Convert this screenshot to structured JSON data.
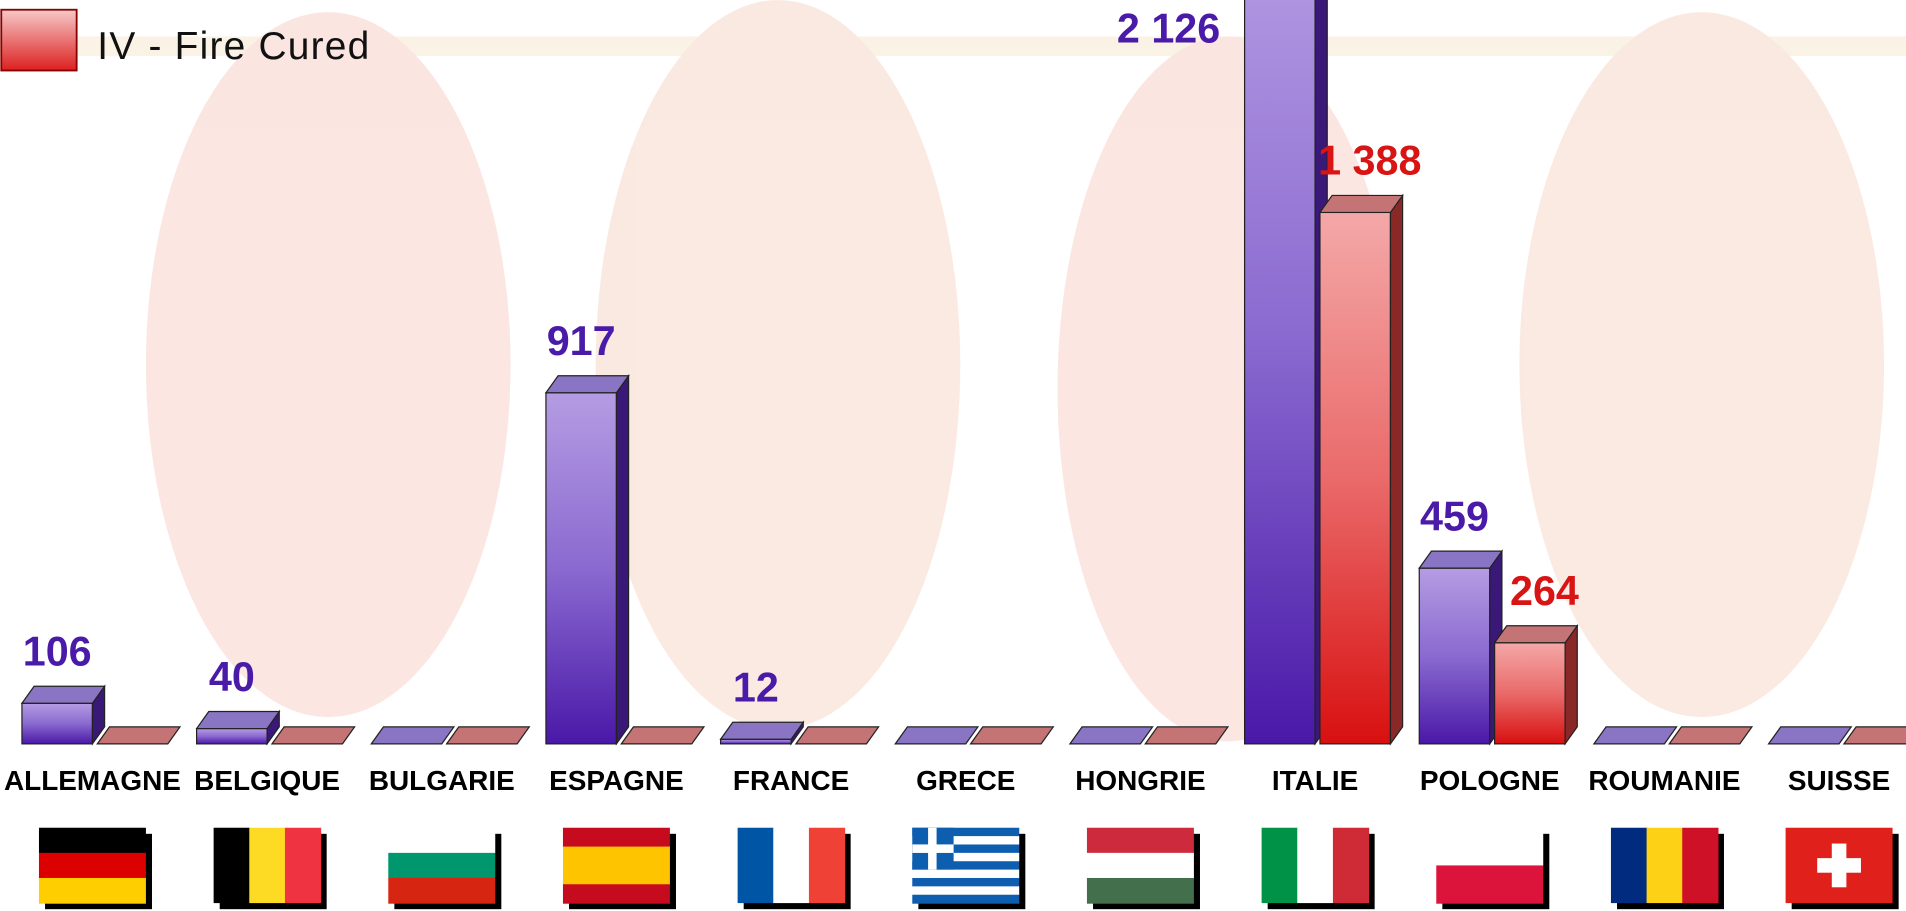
{
  "chart_data": {
    "type": "bar3d",
    "categories": [
      "ALLEMAGNE",
      "BELGIQUE",
      "BULGARIE",
      "ESPAGNE",
      "FRANCE",
      "GRECE",
      "HONGRIE",
      "ITALIE",
      "POLOGNE",
      "ROUMANIE",
      "SUISSE"
    ],
    "series": [
      {
        "color": "#4a1aa8",
        "values": [
          106,
          40,
          0,
          917,
          12,
          0,
          0,
          2126,
          459,
          0,
          0
        ],
        "value_labels": [
          "106",
          "40",
          null,
          "917",
          "12",
          null,
          null,
          "2 126",
          "459",
          null,
          null
        ]
      },
      {
        "name": "IV  -  Fire Cured",
        "color": "#d81414",
        "values": [
          0,
          0,
          0,
          0,
          0,
          0,
          0,
          1388,
          264,
          0,
          0
        ],
        "value_labels": [
          null,
          null,
          null,
          null,
          null,
          null,
          null,
          "1 388",
          "264",
          null,
          null
        ]
      }
    ]
  }
}
